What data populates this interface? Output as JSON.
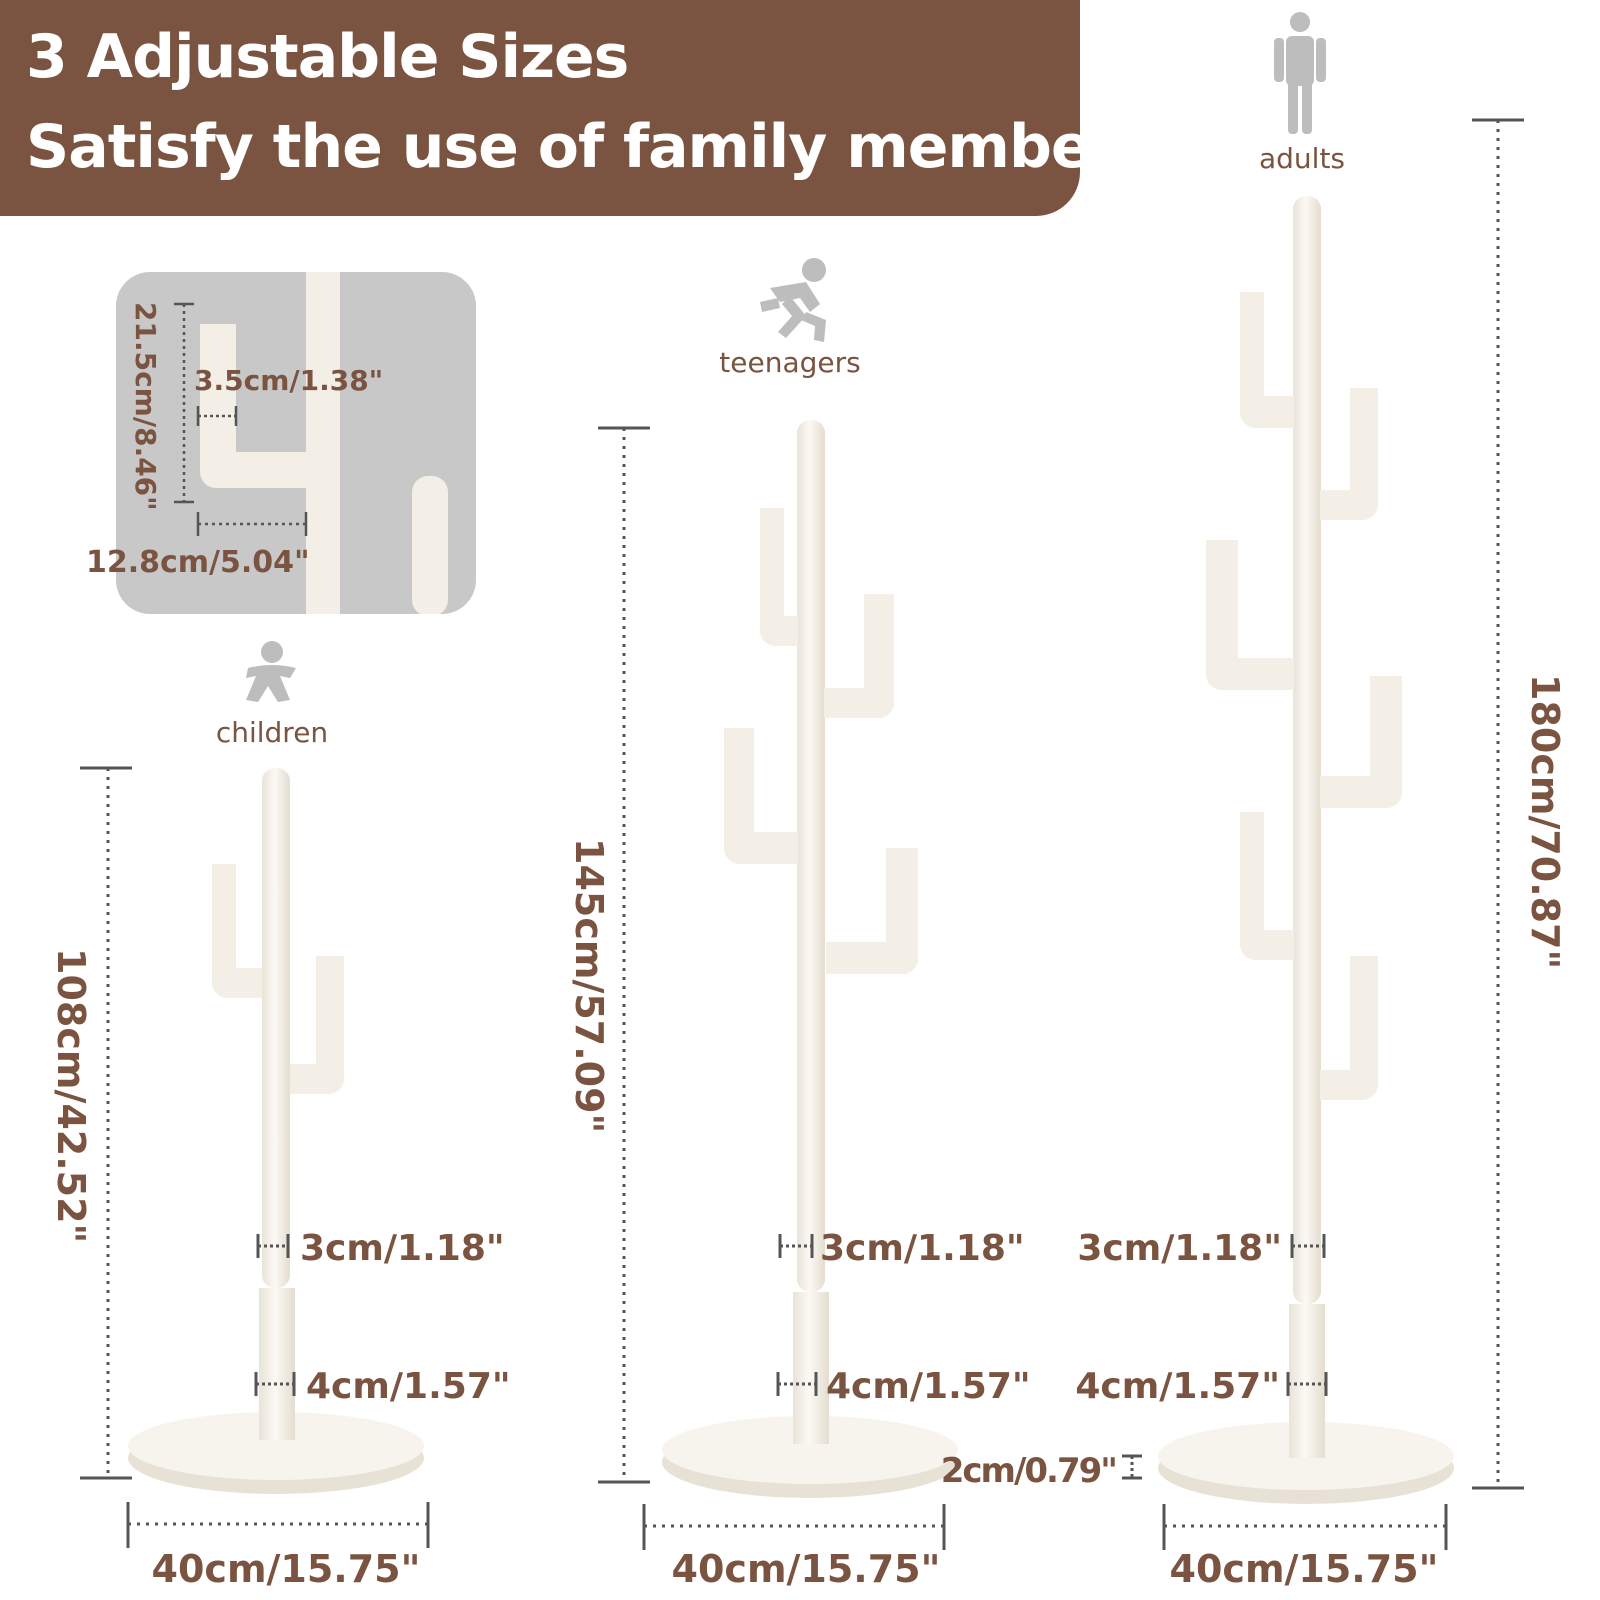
{
  "banner": {
    "line1": "3 Adjustable Sizes",
    "line2": "Satisfy the use of family members",
    "bg_color": "#7a5440"
  },
  "detail_inset": {
    "height_label": "21.5cm/8.46\"",
    "depth_label": "3.5cm/1.38\"",
    "length_label": "12.8cm/5.04\""
  },
  "stands": [
    {
      "group": "children",
      "icon": "child-icon",
      "height_label": "108cm/42.52\"",
      "top_diameter_label": "3cm/1.18\"",
      "bottom_diameter_label": "4cm/1.57\"",
      "base_width_label": "40cm/15.75\""
    },
    {
      "group": "teenagers",
      "icon": "running-teen-icon",
      "height_label": "145cm/57.09\"",
      "top_diameter_label": "3cm/1.18\"",
      "bottom_diameter_label": "4cm/1.57\"",
      "base_width_label": "40cm/15.75\""
    },
    {
      "group": "adults",
      "icon": "adult-icon",
      "height_label": "180cm/70.87\"",
      "top_diameter_label": "3cm/1.18\"",
      "bottom_diameter_label": "4cm/1.57\"",
      "base_width_label": "40cm/15.75\"",
      "base_thickness_label": "2cm/0.79\""
    }
  ],
  "colors": {
    "accent": "#7a5440",
    "stand": "#f6f2ea",
    "icon": "#bdbdbd",
    "inset_bg": "#c8c8c8"
  }
}
